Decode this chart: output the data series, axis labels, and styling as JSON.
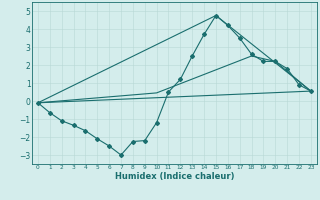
{
  "xlabel": "Humidex (Indice chaleur)",
  "background_color": "#d4edec",
  "grid_color": "#b8d8d6",
  "line_color": "#1a6e6e",
  "xlim": [
    -0.5,
    23.5
  ],
  "ylim": [
    -3.5,
    5.5
  ],
  "yticks": [
    -3,
    -2,
    -1,
    0,
    1,
    2,
    3,
    4,
    5
  ],
  "xticks": [
    0,
    1,
    2,
    3,
    4,
    5,
    6,
    7,
    8,
    9,
    10,
    11,
    12,
    13,
    14,
    15,
    16,
    17,
    18,
    19,
    20,
    21,
    22,
    23
  ],
  "line1_x": [
    0,
    1,
    2,
    3,
    4,
    5,
    6,
    7,
    8,
    9,
    10,
    11,
    12,
    13,
    14,
    15,
    16,
    17,
    18,
    19,
    20,
    21,
    22,
    23
  ],
  "line1_y": [
    -0.1,
    -0.65,
    -1.1,
    -1.35,
    -1.65,
    -2.1,
    -2.5,
    -3.0,
    -2.25,
    -2.2,
    -1.2,
    0.5,
    1.2,
    2.5,
    3.7,
    4.75,
    4.2,
    3.5,
    2.6,
    2.2,
    2.2,
    1.8,
    0.9,
    0.55
  ],
  "line2_x": [
    0,
    10,
    18,
    20,
    23
  ],
  "line2_y": [
    -0.1,
    0.45,
    2.5,
    2.2,
    0.55
  ],
  "line3_x": [
    0,
    23
  ],
  "line3_y": [
    -0.1,
    0.55
  ],
  "line4_x": [
    0,
    15,
    23
  ],
  "line4_y": [
    -0.1,
    4.75,
    0.55
  ],
  "marker_size": 2.0,
  "line_width": 0.8
}
